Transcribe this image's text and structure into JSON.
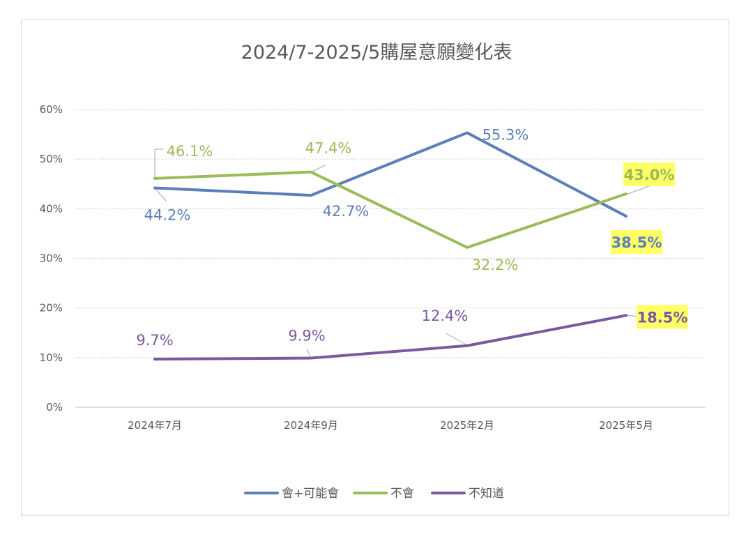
{
  "chart_data": {
    "type": "line",
    "title": "2024/7-2025/5購屋意願變化表",
    "categories": [
      "2024年7月",
      "2024年9月",
      "2025年2月",
      "2025年5月"
    ],
    "ylim": [
      0,
      60
    ],
    "yticks": [
      "0%",
      "10%",
      "20%",
      "30%",
      "40%",
      "50%",
      "60%"
    ],
    "grid": true,
    "legend_position": "bottom",
    "series": [
      {
        "name": "會+可能會",
        "color": "#5b7fb8",
        "values": [
          44.2,
          42.7,
          55.3,
          38.5
        ],
        "labels": [
          "44.2%",
          "42.7%",
          "55.3%",
          "38.5%"
        ]
      },
      {
        "name": "不會",
        "color": "#9bbb59",
        "values": [
          46.1,
          47.4,
          32.2,
          43.0
        ],
        "labels": [
          "46.1%",
          "47.4%",
          "32.2%",
          "43.0%"
        ]
      },
      {
        "name": "不知道",
        "color": "#7a5a9e",
        "values": [
          9.7,
          9.9,
          12.4,
          18.5
        ],
        "labels": [
          "9.7%",
          "9.9%",
          "12.4%",
          "18.5%"
        ]
      }
    ],
    "highlight_color": "#ffff66"
  }
}
